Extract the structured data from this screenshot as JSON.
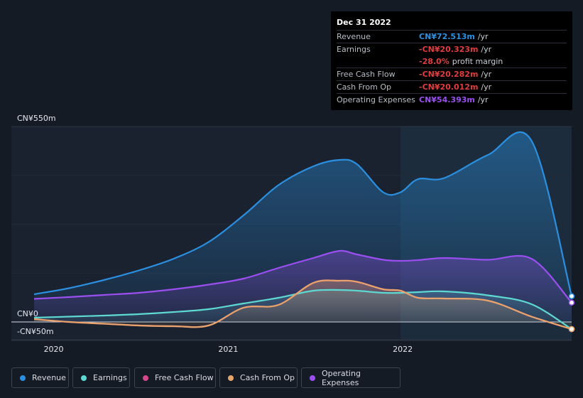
{
  "tooltip": {
    "date": "Dec 31 2022",
    "rows": {
      "revenue": {
        "label": "Revenue",
        "value": "CN¥72.513m",
        "unit": "/yr",
        "color": "#2b90e0"
      },
      "earnings": {
        "label": "Earnings",
        "value": "-CN¥20.323m",
        "unit": "/yr",
        "color": "#e23d3d"
      },
      "margin": {
        "value": "-28.0%",
        "unit": "profit margin",
        "color": "#e23d3d"
      },
      "fcf": {
        "label": "Free Cash Flow",
        "value": "-CN¥20.282m",
        "unit": "/yr",
        "color": "#e23d3d"
      },
      "cfo": {
        "label": "Cash From Op",
        "value": "-CN¥20.012m",
        "unit": "/yr",
        "color": "#e23d3d"
      },
      "opex": {
        "label": "Operating Expenses",
        "value": "CN¥54.393m",
        "unit": "/yr",
        "color": "#9b4ff0"
      }
    }
  },
  "legend": {
    "revenue": {
      "label": "Revenue",
      "color": "#2b90e0"
    },
    "earnings": {
      "label": "Earnings",
      "color": "#5ed9d1"
    },
    "fcf": {
      "label": "Free Cash Flow",
      "color": "#d6478b"
    },
    "cfo": {
      "label": "Cash From Op",
      "color": "#e8a56b"
    },
    "opex": {
      "label": "Operating Expenses",
      "color": "#9b4ff0"
    }
  },
  "chart_data": {
    "type": "area",
    "title": "",
    "x": [
      2019.9,
      2020.1,
      2020.3,
      2020.5,
      2020.7,
      2020.9,
      2021.1,
      2021.3,
      2021.5,
      2021.65,
      2021.75,
      2021.9,
      2022.0,
      2022.1,
      2022.25,
      2022.5,
      2022.75,
      2022.98
    ],
    "ylim": [
      -50,
      550
    ],
    "y_ticks": [
      {
        "value": 550,
        "label": "CN¥550m"
      },
      {
        "value": 0,
        "label": "CN¥0"
      },
      {
        "value": -50,
        "label": "-CN¥50m"
      }
    ],
    "x_ticks": [
      {
        "value": 2020,
        "label": "2020"
      },
      {
        "value": 2021,
        "label": "2021"
      },
      {
        "value": 2022,
        "label": "2022"
      }
    ],
    "highlight_from": 2022.0,
    "series": [
      {
        "name": "Revenue",
        "key": "revenue",
        "color": "#2b90e0",
        "values": [
          78,
          95,
          118,
          145,
          178,
          225,
          300,
          385,
          438,
          456,
          444,
          365,
          365,
          402,
          405,
          470,
          510,
          72.5
        ]
      },
      {
        "name": "Operating Expenses",
        "key": "opex",
        "color": "#9b4ff0",
        "values": [
          65,
          70,
          76,
          82,
          92,
          105,
          122,
          152,
          180,
          200,
          190,
          175,
          172,
          174,
          180,
          175,
          178,
          54.4
        ]
      },
      {
        "name": "Earnings",
        "key": "earnings",
        "color": "#5ed9d1",
        "values": [
          12,
          15,
          18,
          22,
          28,
          36,
          52,
          68,
          88,
          90,
          88,
          82,
          82,
          84,
          86,
          75,
          50,
          -20.3
        ]
      },
      {
        "name": "Free Cash Flow",
        "key": "fcf",
        "color": "#d6478b",
        "values": [
          8,
          0,
          -5,
          -10,
          -12,
          -10,
          40,
          48,
          110,
          116,
          113,
          92,
          88,
          68,
          66,
          60,
          15,
          -20.3
        ]
      },
      {
        "name": "Cash From Op",
        "key": "cfo",
        "color": "#e8a56b",
        "values": [
          8,
          0,
          -5,
          -10,
          -12,
          -10,
          40,
          48,
          110,
          116,
          113,
          92,
          88,
          68,
          66,
          60,
          15,
          -20.0
        ]
      }
    ]
  }
}
